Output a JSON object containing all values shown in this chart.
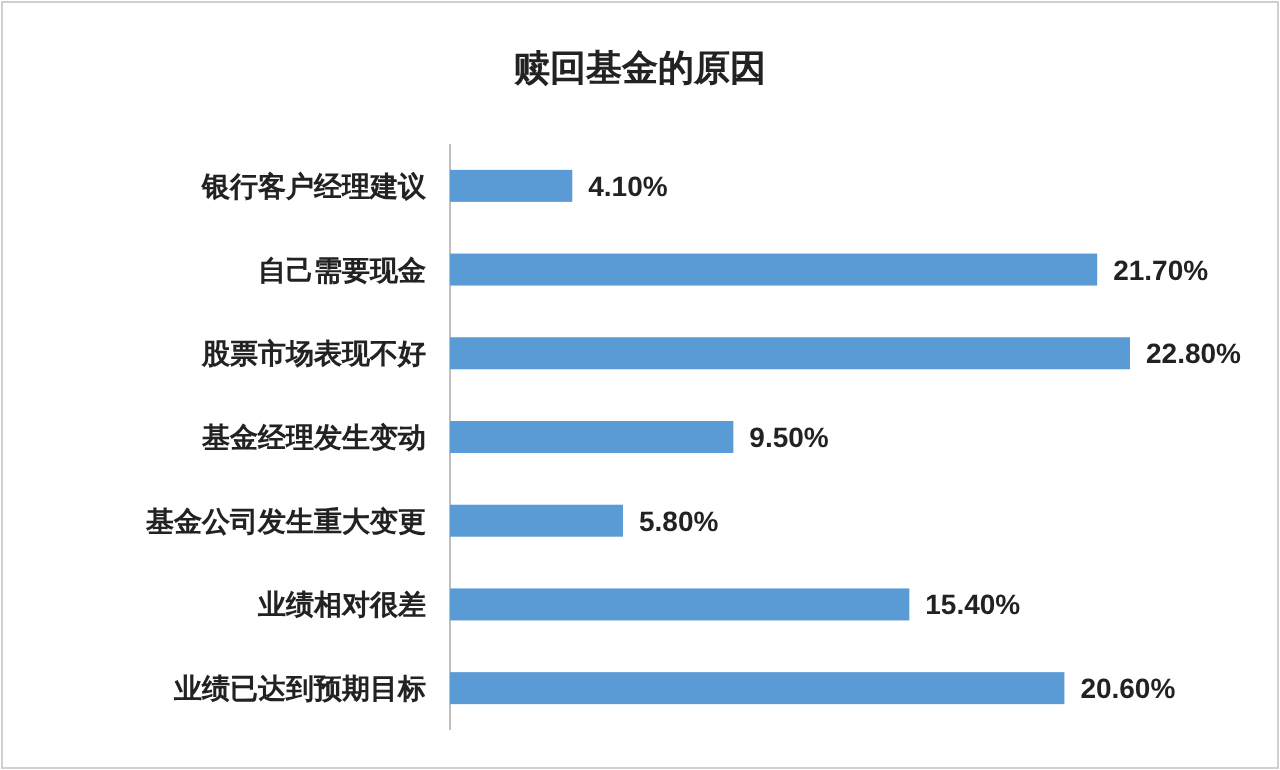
{
  "chart_data": {
    "type": "bar",
    "orientation": "horizontal",
    "title": "赎回基金的原因",
    "categories": [
      "银行客户经理建议",
      "自己需要现金",
      "股票市场表现不好",
      "基金经理发生变动",
      "基金公司发生重大变更",
      "业绩相对很差",
      "业绩已达到预期目标"
    ],
    "values": [
      4.1,
      21.7,
      22.8,
      9.5,
      5.8,
      15.4,
      20.6
    ],
    "value_labels": [
      "4.10%",
      "21.70%",
      "22.80%",
      "9.50%",
      "5.80%",
      "15.40%",
      "20.60%"
    ],
    "color": "#5b9bd5"
  }
}
